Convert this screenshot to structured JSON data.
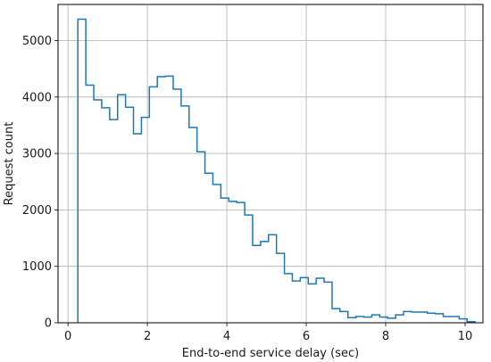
{
  "chart_data": {
    "type": "histogram",
    "title": "",
    "xlabel": "End-to-end service delay (sec)",
    "ylabel": "Request count",
    "xlim": [
      -0.25,
      10.45
    ],
    "ylim": [
      0,
      5640
    ],
    "xticks": [
      0,
      2,
      4,
      6,
      8,
      10
    ],
    "yticks": [
      0,
      1000,
      2000,
      3000,
      4000,
      5000
    ],
    "grid": true,
    "line_color": "#1f77b4",
    "bin_width": 0.2,
    "bin_start": 0.25,
    "values": [
      5380,
      4210,
      3950,
      3810,
      3600,
      4040,
      3820,
      3350,
      3640,
      4180,
      4360,
      4370,
      4140,
      3840,
      3460,
      3030,
      2650,
      2450,
      2210,
      2150,
      2130,
      1910,
      1370,
      1440,
      1560,
      1230,
      870,
      740,
      800,
      690,
      790,
      720,
      250,
      200,
      90,
      110,
      100,
      140,
      100,
      80,
      140,
      200,
      190,
      190,
      170,
      160,
      110,
      110,
      70,
      20
    ]
  }
}
